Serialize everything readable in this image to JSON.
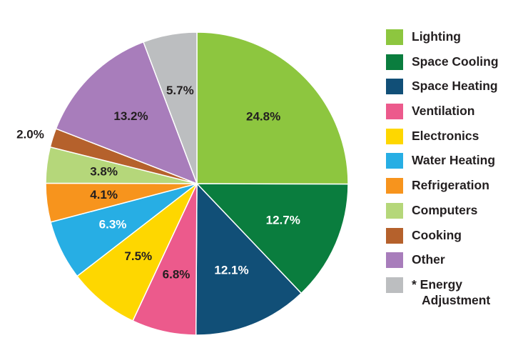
{
  "chart_data": {
    "type": "pie",
    "categories": [
      "Lighting",
      "Space Cooling",
      "Space Heating",
      "Ventilation",
      "Electronics",
      "Water Heating",
      "Refrigeration",
      "Computers",
      "Cooking",
      "Other",
      "* Energy Adjustment"
    ],
    "values": [
      24.8,
      12.7,
      12.1,
      6.8,
      7.5,
      6.3,
      4.1,
      3.8,
      2.0,
      13.2,
      5.7
    ],
    "value_labels": [
      "24.8%",
      "12.7%",
      "12.1%",
      "6.8%",
      "7.5%",
      "6.3%",
      "4.1%",
      "3.8%",
      "2.0%",
      "13.2%",
      "5.7%"
    ],
    "colors": [
      "#8dc63f",
      "#0a7d3e",
      "#114f77",
      "#ec5a8c",
      "#fed700",
      "#27aee4",
      "#f7941d",
      "#b5d77a",
      "#b5612c",
      "#a87dbb",
      "#bcbec0"
    ],
    "label_colors": [
      "#231f20",
      "#ffffff",
      "#ffffff",
      "#231f20",
      "#231f20",
      "#ffffff",
      "#231f20",
      "#231f20",
      "#231f20",
      "#231f20",
      "#231f20"
    ],
    "legend": "right"
  }
}
